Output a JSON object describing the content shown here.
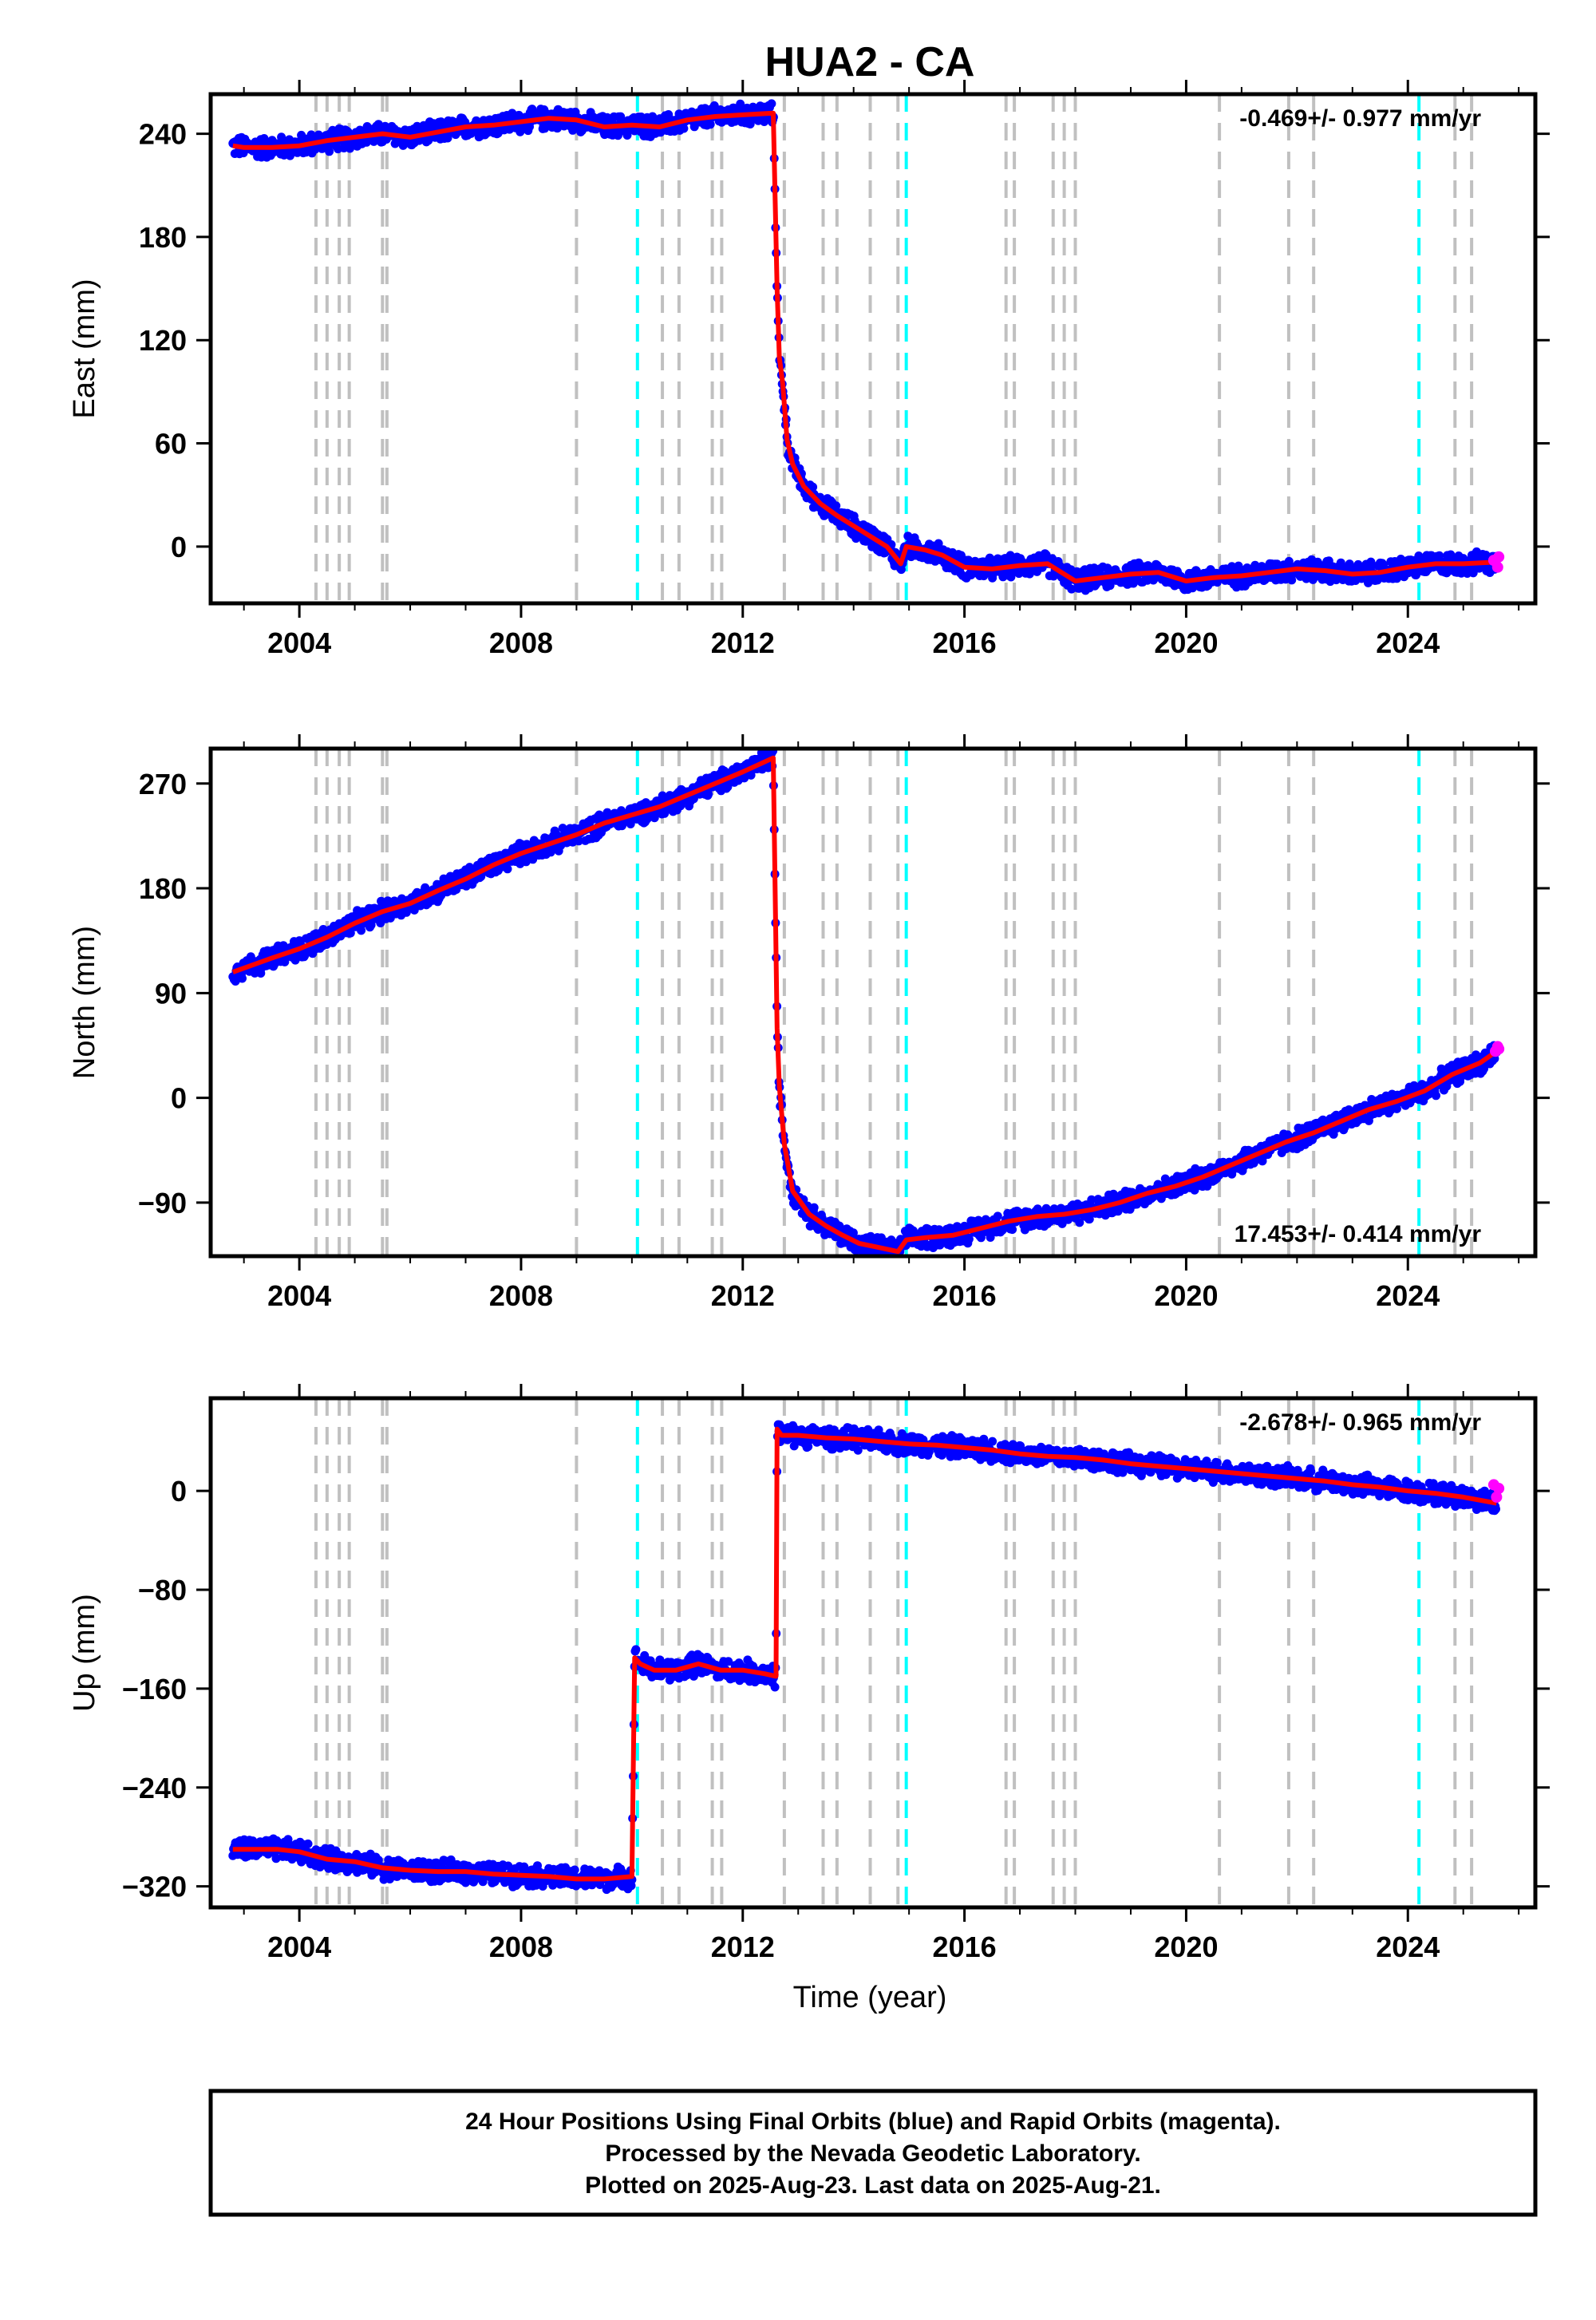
{
  "title": "HUA2 - CA",
  "colors": {
    "final": "#0000ff",
    "rapid": "#ff00ff",
    "model": "#ff0000",
    "steps_gray": "#c0c0c0",
    "steps_cyan": "#00ffff",
    "frame": "#000000"
  },
  "x_ticks": [
    "2004",
    "2008",
    "2012",
    "2016",
    "2020",
    "2024"
  ],
  "xlabel": "Time (year)",
  "chart_data": [
    {
      "type": "scatter",
      "panel": "east",
      "ylabel": "East (mm)",
      "xlim": [
        2002.4,
        2026.3
      ],
      "ylim": [
        -33,
        263
      ],
      "y_ticks": [
        240,
        180,
        120,
        60,
        0
      ],
      "y_tick_labels": [
        "240",
        "180",
        "120",
        "60",
        "0"
      ],
      "rate_label": "-0.469+/- 0.977 mm/yr",
      "rate_position": "top-right",
      "series": [
        {
          "x": [
            2002.8,
            2003.0,
            2003.5,
            2004.0,
            2004.5,
            2005.0,
            2005.5,
            2006.0,
            2006.5,
            2007.0,
            2007.5,
            2008.0,
            2008.5,
            2009.0,
            2009.5,
            2010.0,
            2010.5,
            2011.0,
            2011.5,
            2012.0,
            2012.55,
            2012.62,
            2012.66,
            2012.72,
            2012.8,
            2012.9,
            2013.1,
            2013.4,
            2013.7,
            2014.0,
            2014.3,
            2014.6,
            2014.85,
            2014.95,
            2015.3,
            2015.6,
            2016.0,
            2016.5,
            2017.0,
            2017.5,
            2018.0,
            2018.5,
            2019.0,
            2019.5,
            2020.0,
            2020.5,
            2021.0,
            2021.5,
            2022.0,
            2022.5,
            2023.0,
            2023.5,
            2024.0,
            2024.5,
            2025.0,
            2025.6
          ],
          "y": [
            233,
            232,
            232,
            233,
            236,
            238,
            240,
            238,
            241,
            244,
            245,
            247,
            249,
            248,
            244,
            245,
            244,
            248,
            250,
            251,
            252,
            150,
            110,
            95,
            62,
            48,
            35,
            25,
            18,
            12,
            6,
            0,
            -10,
            0,
            -2,
            -5,
            -12,
            -13,
            -11,
            -10,
            -20,
            -18,
            -16,
            -15,
            -20,
            -18,
            -17,
            -15,
            -13,
            -14,
            -16,
            -15,
            -12,
            -10,
            -10,
            -9
          ]
        }
      ],
      "rapid_points": [
        [
          2025.55,
          -8
        ],
        [
          2025.62,
          -12
        ],
        [
          2025.64,
          -6
        ]
      ]
    },
    {
      "type": "scatter",
      "panel": "north",
      "ylabel": "North (mm)",
      "xlim": [
        2002.4,
        2026.3
      ],
      "ylim": [
        -136,
        300
      ],
      "y_ticks": [
        270,
        180,
        90,
        0,
        -90
      ],
      "y_tick_labels": [
        "270",
        "180",
        "90",
        "0",
        "−90"
      ],
      "rate_label": "17.453+/- 0.414 mm/yr",
      "rate_position": "bottom-right",
      "series": [
        {
          "x": [
            2002.8,
            2003.5,
            2004.0,
            2004.5,
            2005.0,
            2005.5,
            2006.0,
            2006.5,
            2007.0,
            2007.5,
            2008.0,
            2008.5,
            2009.0,
            2009.5,
            2010.0,
            2010.5,
            2011.0,
            2011.5,
            2012.0,
            2012.55,
            2012.62,
            2012.66,
            2012.75,
            2012.9,
            2013.2,
            2013.5,
            2013.8,
            2014.1,
            2014.4,
            2014.8,
            2014.95,
            2015.3,
            2015.8,
            2016.3,
            2016.8,
            2017.3,
            2017.8,
            2018.3,
            2018.8,
            2019.3,
            2019.8,
            2020.3,
            2020.8,
            2021.3,
            2021.8,
            2022.3,
            2022.8,
            2023.3,
            2023.8,
            2024.3,
            2024.8,
            2025.3,
            2025.6
          ],
          "y": [
            108,
            120,
            128,
            138,
            150,
            160,
            167,
            178,
            188,
            200,
            210,
            218,
            226,
            236,
            243,
            250,
            260,
            270,
            280,
            292,
            60,
            10,
            -40,
            -80,
            -100,
            -110,
            -118,
            -125,
            -128,
            -132,
            -122,
            -120,
            -118,
            -112,
            -106,
            -102,
            -100,
            -96,
            -90,
            -82,
            -76,
            -68,
            -58,
            -48,
            -38,
            -30,
            -20,
            -10,
            -3,
            6,
            20,
            30,
            40
          ]
        }
      ],
      "rapid_points": [
        [
          2025.58,
          40
        ],
        [
          2025.62,
          44
        ],
        [
          2025.64,
          42
        ]
      ]
    },
    {
      "type": "scatter",
      "panel": "up",
      "ylabel": "Up (mm)",
      "xlim": [
        2002.4,
        2026.3
      ],
      "ylim": [
        -337,
        75
      ],
      "y_ticks": [
        0,
        -80,
        -160,
        -240,
        -320
      ],
      "y_tick_labels": [
        "0",
        "−80",
        "−160",
        "−240",
        "−320"
      ],
      "rate_label": "-2.678+/- 0.965 mm/yr",
      "rate_position": "top-right",
      "series": [
        {
          "x": [
            2002.8,
            2003.2,
            2003.6,
            2004.0,
            2004.5,
            2005.0,
            2005.5,
            2006.0,
            2006.5,
            2007.0,
            2007.5,
            2008.0,
            2008.5,
            2009.0,
            2009.5,
            2010.0,
            2010.05,
            2010.15,
            2010.4,
            2010.8,
            2011.2,
            2011.6,
            2012.0,
            2012.4,
            2012.6,
            2012.62,
            2012.7,
            2013.0,
            2013.5,
            2014.0,
            2014.5,
            2015.0,
            2015.5,
            2016.0,
            2016.5,
            2017.0,
            2017.5,
            2018.0,
            2018.5,
            2019.0,
            2019.5,
            2020.0,
            2020.5,
            2021.0,
            2021.5,
            2022.0,
            2022.5,
            2023.0,
            2023.5,
            2024.0,
            2024.5,
            2025.0,
            2025.6
          ],
          "y": [
            -290,
            -290,
            -290,
            -292,
            -298,
            -300,
            -305,
            -307,
            -308,
            -308,
            -310,
            -311,
            -312,
            -314,
            -314,
            -312,
            -135,
            -140,
            -145,
            -145,
            -140,
            -145,
            -145,
            -148,
            -150,
            50,
            45,
            45,
            43,
            42,
            40,
            38,
            37,
            35,
            33,
            30,
            28,
            27,
            25,
            22,
            20,
            18,
            16,
            14,
            12,
            10,
            8,
            5,
            3,
            0,
            -2,
            -5,
            -10
          ]
        }
      ],
      "rapid_points": [
        [
          2025.55,
          5
        ],
        [
          2025.6,
          -5
        ],
        [
          2025.64,
          2
        ]
      ]
    }
  ],
  "step_lines": {
    "gray": [
      2004.3,
      2004.5,
      2004.72,
      2004.9,
      2005.5,
      2005.58,
      2009.0,
      2010.55,
      2010.85,
      2011.45,
      2011.62,
      2012.75,
      2013.45,
      2013.7,
      2014.3,
      2014.8,
      2016.75,
      2016.9,
      2017.6,
      2017.8,
      2018.0,
      2020.6,
      2021.85,
      2022.3,
      2024.85,
      2025.15
    ],
    "cyan": [
      2010.1,
      2014.95,
      2024.2
    ]
  },
  "footer": {
    "line1": "24 Hour Positions Using Final Orbits (blue) and Rapid Orbits (magenta).",
    "line2": "Processed by the Nevada Geodetic Laboratory.",
    "line3": "Plotted on 2025-Aug-23. Last data on 2025-Aug-21."
  }
}
